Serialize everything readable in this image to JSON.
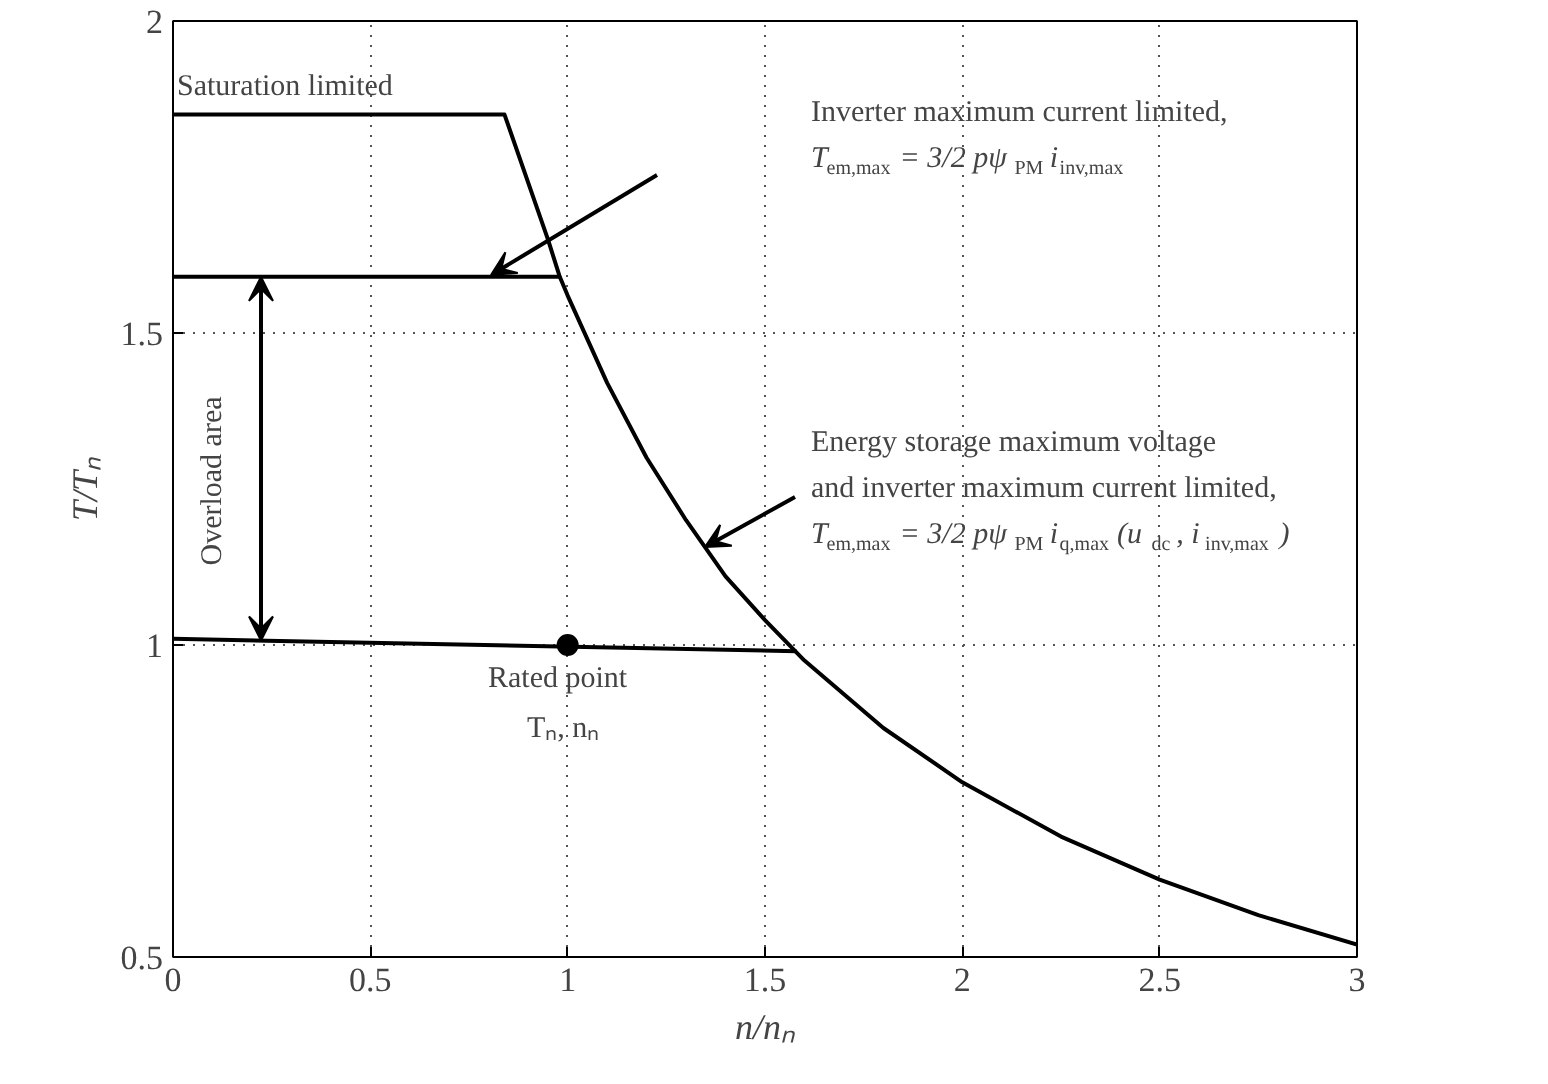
{
  "chart_data": {
    "type": "line",
    "xlabel": "n/nₙ",
    "ylabel": "T/Tₙ",
    "xlim": [
      0,
      3
    ],
    "ylim": [
      0.5,
      2
    ],
    "xticks": [
      0,
      0.5,
      1,
      1.5,
      2,
      2.5,
      3
    ],
    "yticks": [
      0.5,
      1,
      1.5,
      2
    ],
    "grid": true,
    "marker": "none",
    "line_style": "solid",
    "series": [
      {
        "color": "#000000",
        "x": [
          0,
          0.84,
          0.95,
          0.98,
          1.0,
          1.1,
          1.2,
          1.3,
          1.4,
          1.5,
          1.6,
          1.8,
          2.0,
          2.25,
          2.5,
          2.75,
          3.0
        ],
        "values": [
          1.85,
          1.85,
          1.65,
          1.59,
          1.56,
          1.42,
          1.3,
          1.2,
          1.11,
          1.04,
          0.975,
          0.867,
          0.78,
          0.693,
          0.624,
          0.567,
          0.52
        ]
      },
      {
        "color": "#000000",
        "x": [
          0,
          0.98
        ],
        "values": [
          1.59,
          1.59
        ]
      },
      {
        "color": "#000000",
        "x": [
          0,
          1.58
        ],
        "values": [
          1.01,
          0.99
        ]
      },
      {
        "type": "scatter",
        "marker": "circle",
        "color": "#000000",
        "x": [
          1
        ],
        "values": [
          1.0
        ]
      }
    ],
    "annotations": [
      {
        "text": "Saturation limited",
        "x": 0,
        "y": 1.85
      },
      "Inverter maximum current limited,\nT$_{em,max}$ = 3/2 pψ$_{PM}$i$_{inv,max}$",
      "Energy storage maximum voltage\nand inverter maximum current limited,\nT$_{em,max}$ = 3/2 pψ$_{PM}$i$_{q,max}$ (u$_{dc}$, i$_{inv,max}$)",
      "Overload area",
      {
        "text": "Rated point\nTₙ, nₙ",
        "x": 1,
        "y": 1.0
      }
    ]
  }
}
